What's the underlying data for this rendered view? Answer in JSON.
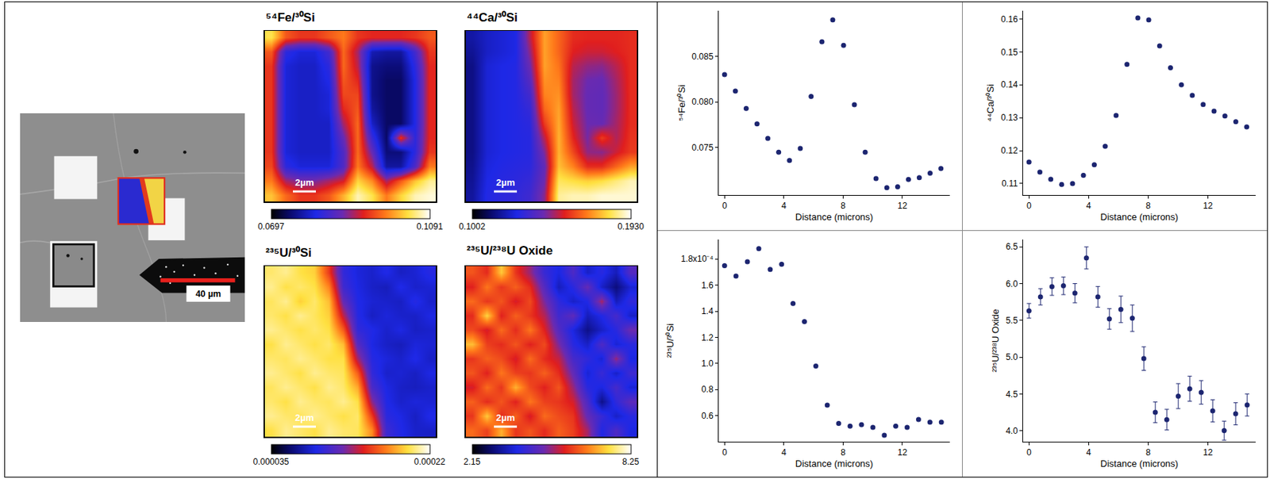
{
  "image": {
    "scale_bar": "40 µm"
  },
  "chart_data": [
    {
      "type": "heatmap",
      "title": "⁵⁴Fe/³⁰Si",
      "tick_labels": false,
      "annotations": [
        {
          "text": "2µm"
        }
      ],
      "zlim": [
        0.0697,
        0.1091
      ],
      "zticks": [
        0.0697,
        0.1091
      ],
      "z": [
        [
          0.104,
          0.096,
          0.094,
          0.094,
          0.096,
          0.098,
          0.094,
          0.093,
          0.093,
          0.093,
          0.094,
          0.096
        ],
        [
          0.096,
          0.082,
          0.08,
          0.08,
          0.084,
          0.097,
          0.09,
          0.078,
          0.077,
          0.077,
          0.084,
          0.094
        ],
        [
          0.094,
          0.08,
          0.079,
          0.079,
          0.082,
          0.097,
          0.091,
          0.076,
          0.075,
          0.075,
          0.082,
          0.093
        ],
        [
          0.094,
          0.08,
          0.079,
          0.079,
          0.081,
          0.096,
          0.093,
          0.076,
          0.074,
          0.074,
          0.081,
          0.093
        ],
        [
          0.094,
          0.08,
          0.079,
          0.079,
          0.08,
          0.095,
          0.095,
          0.076,
          0.074,
          0.074,
          0.081,
          0.093
        ],
        [
          0.094,
          0.08,
          0.079,
          0.079,
          0.08,
          0.093,
          0.096,
          0.077,
          0.074,
          0.074,
          0.081,
          0.093
        ],
        [
          0.094,
          0.08,
          0.079,
          0.079,
          0.079,
          0.09,
          0.097,
          0.079,
          0.074,
          0.074,
          0.081,
          0.093
        ],
        [
          0.094,
          0.08,
          0.079,
          0.079,
          0.079,
          0.087,
          0.097,
          0.083,
          0.074,
          0.094,
          0.082,
          0.093
        ],
        [
          0.094,
          0.08,
          0.079,
          0.079,
          0.079,
          0.085,
          0.097,
          0.087,
          0.075,
          0.075,
          0.082,
          0.094
        ],
        [
          0.095,
          0.082,
          0.08,
          0.08,
          0.08,
          0.085,
          0.098,
          0.091,
          0.077,
          0.077,
          0.085,
          0.098
        ],
        [
          0.098,
          0.09,
          0.088,
          0.088,
          0.09,
          0.092,
          0.103,
          0.099,
          0.09,
          0.096,
          0.102,
          0.106
        ],
        [
          0.102,
          0.097,
          0.094,
          0.094,
          0.096,
          0.101,
          0.107,
          0.104,
          0.098,
          0.103,
          0.107,
          0.108
        ]
      ]
    },
    {
      "type": "heatmap",
      "title": "⁴⁴Ca/³⁰Si",
      "tick_labels": false,
      "annotations": [
        {
          "text": "2µm"
        }
      ],
      "zlim": [
        0.1002,
        0.193
      ],
      "zticks": [
        0.1002,
        {
          "value": 0.193,
          "label": "0.1930"
        }
      ],
      "z": [
        [
          0.118,
          0.122,
          0.124,
          0.126,
          0.15,
          0.172,
          0.164,
          0.156,
          0.155,
          0.155,
          0.155,
          0.156
        ],
        [
          0.116,
          0.122,
          0.124,
          0.126,
          0.146,
          0.172,
          0.164,
          0.154,
          0.152,
          0.152,
          0.154,
          0.156
        ],
        [
          0.114,
          0.124,
          0.126,
          0.127,
          0.142,
          0.172,
          0.166,
          0.15,
          0.146,
          0.145,
          0.15,
          0.156
        ],
        [
          0.114,
          0.124,
          0.126,
          0.127,
          0.138,
          0.17,
          0.168,
          0.148,
          0.142,
          0.141,
          0.148,
          0.156
        ],
        [
          0.114,
          0.124,
          0.126,
          0.127,
          0.134,
          0.168,
          0.17,
          0.148,
          0.141,
          0.14,
          0.147,
          0.156
        ],
        [
          0.114,
          0.124,
          0.126,
          0.127,
          0.131,
          0.164,
          0.172,
          0.15,
          0.141,
          0.14,
          0.147,
          0.156
        ],
        [
          0.114,
          0.124,
          0.126,
          0.127,
          0.129,
          0.158,
          0.173,
          0.152,
          0.142,
          0.141,
          0.148,
          0.156
        ],
        [
          0.114,
          0.124,
          0.126,
          0.127,
          0.128,
          0.15,
          0.174,
          0.155,
          0.143,
          0.158,
          0.149,
          0.157
        ],
        [
          0.114,
          0.124,
          0.126,
          0.127,
          0.128,
          0.144,
          0.174,
          0.16,
          0.146,
          0.145,
          0.152,
          0.158
        ],
        [
          0.115,
          0.125,
          0.127,
          0.128,
          0.129,
          0.14,
          0.176,
          0.168,
          0.156,
          0.156,
          0.164,
          0.172
        ],
        [
          0.116,
          0.126,
          0.128,
          0.129,
          0.131,
          0.142,
          0.182,
          0.18,
          0.178,
          0.18,
          0.184,
          0.188
        ],
        [
          0.117,
          0.127,
          0.129,
          0.13,
          0.133,
          0.145,
          0.186,
          0.188,
          0.188,
          0.19,
          0.19,
          0.19
        ]
      ]
    },
    {
      "type": "heatmap",
      "title": "²³⁵U/³⁰Si",
      "tick_labels": false,
      "annotations": [
        {
          "text": "2µm"
        }
      ],
      "zlim": [
        3.5e-05,
        0.00022
      ],
      "zticks": [
        3.5e-05,
        0.00022
      ],
      "z": [
        [
          0.0002,
          0.000205,
          0.000195,
          0.00019,
          0.00015,
          9.5e-05,
          8.4e-05,
          8e-05,
          8.8e-05,
          7.8e-05,
          8.2e-05,
          9e-05
        ],
        [
          0.000205,
          0.000195,
          0.0002,
          0.000195,
          0.00017,
          0.0001,
          8.6e-05,
          7.9e-05,
          7.6e-05,
          8.8e-05,
          8e-05,
          8.2e-05
        ],
        [
          0.000198,
          0.000205,
          0.00019,
          0.0002,
          0.000185,
          0.000115,
          8.8e-05,
          8.2e-05,
          8e-05,
          7.8e-05,
          9e-05,
          8e-05
        ],
        [
          0.0002,
          0.000195,
          0.000205,
          0.000198,
          0.00019,
          0.000135,
          9e-05,
          7.8e-05,
          8.4e-05,
          8e-05,
          7.9e-05,
          8.6e-05
        ],
        [
          0.000205,
          0.0002,
          0.000195,
          0.0002,
          0.000195,
          0.00016,
          9.5e-05,
          8.8e-05,
          8e-05,
          8.6e-05,
          7.8e-05,
          8e-05
        ],
        [
          0.000195,
          0.000205,
          0.0002,
          0.000195,
          0.0002,
          0.000185,
          0.00011,
          8.6e-05,
          7.9e-05,
          7.6e-05,
          8.4e-05,
          8.2e-05
        ],
        [
          0.0002,
          0.000198,
          0.000205,
          0.0002,
          0.000195,
          0.000195,
          0.00013,
          9e-05,
          8.4e-05,
          8e-05,
          8.8e-05,
          7.9e-05
        ],
        [
          0.000205,
          0.0002,
          0.000195,
          0.000205,
          0.0002,
          0.000198,
          0.00016,
          9.5e-05,
          8e-05,
          8.2e-05,
          7.8e-05,
          8.6e-05
        ],
        [
          0.000198,
          0.000205,
          0.0002,
          0.000195,
          0.000205,
          0.0002,
          0.00018,
          0.000105,
          8.6e-05,
          7.9e-05,
          7.7e-05,
          8e-05
        ],
        [
          0.0002,
          0.000195,
          0.000205,
          0.0002,
          0.000198,
          0.000205,
          0.000195,
          0.000125,
          8.8e-05,
          8e-05,
          8.4e-05,
          8.2e-05
        ],
        [
          0.000205,
          0.0002,
          0.000198,
          0.000205,
          0.0002,
          0.000195,
          0.0002,
          0.00015,
          9.2e-05,
          8.6e-05,
          7.8e-05,
          8.8e-05
        ],
        [
          0.000195,
          0.000205,
          0.0002,
          0.000195,
          0.000205,
          0.0002,
          0.000198,
          0.000172,
          0.0001,
          8.8e-05,
          8e-05,
          7.9e-05
        ]
      ]
    },
    {
      "type": "heatmap",
      "title": "²³⁵U/²³⁸U Oxide",
      "tick_labels": false,
      "annotations": [
        {
          "text": "2µm"
        }
      ],
      "zlim": [
        2.15,
        8.25
      ],
      "zticks": [
        2.15,
        8.25
      ],
      "z": [
        [
          6.2,
          5.8,
          7.2,
          5.9,
          5.2,
          4.2,
          3.8,
          4.5,
          3.6,
          4.0,
          3.5,
          4.6
        ],
        [
          5.7,
          6.5,
          5.9,
          6.3,
          5.8,
          4.6,
          3.5,
          4.0,
          4.8,
          3.6,
          3.0,
          3.7
        ],
        [
          6.4,
          5.9,
          6.2,
          5.6,
          6.1,
          5.0,
          4.1,
          3.6,
          3.9,
          5.3,
          3.5,
          4.1
        ],
        [
          5.8,
          7.3,
          5.7,
          6.3,
          5.9,
          5.4,
          4.3,
          4.7,
          3.5,
          3.9,
          4.4,
          3.6
        ],
        [
          6.1,
          5.6,
          6.4,
          5.8,
          6.5,
          5.7,
          4.6,
          3.8,
          3.1,
          3.6,
          4.0,
          4.9
        ],
        [
          7.1,
          6.0,
          5.8,
          6.2,
          5.7,
          6.1,
          5.0,
          4.0,
          3.6,
          4.5,
          3.7,
          4.0
        ],
        [
          5.9,
          6.3,
          6.1,
          5.6,
          6.4,
          5.8,
          5.5,
          4.4,
          4.1,
          3.7,
          5.2,
          3.8
        ],
        [
          6.2,
          5.7,
          6.5,
          6.0,
          5.9,
          6.3,
          5.8,
          4.8,
          3.7,
          4.2,
          3.6,
          4.3
        ],
        [
          5.6,
          6.4,
          5.9,
          7.0,
          6.1,
          5.7,
          6.2,
          5.2,
          4.0,
          3.8,
          4.4,
          3.7
        ],
        [
          6.3,
          5.8,
          6.2,
          5.7,
          6.5,
          6.0,
          5.9,
          5.6,
          4.5,
          3.1,
          4.1,
          4.7
        ],
        [
          5.9,
          7.2,
          5.8,
          6.3,
          5.6,
          6.4,
          6.1,
          5.9,
          4.8,
          4.2,
          3.6,
          4.0
        ],
        [
          6.4,
          6.0,
          7.0,
          5.9,
          6.2,
          5.8,
          6.3,
          6.0,
          5.3,
          3.9,
          4.5,
          3.8
        ]
      ]
    },
    {
      "type": "scatter",
      "x_label": "Distance (microns)",
      "y_label": "⁵⁴Fe/³⁰Si",
      "color": "#1c2570",
      "marker": "circle",
      "grid": false,
      "xlim": [
        -0.4,
        15.2
      ],
      "xticks": [
        0,
        4,
        8,
        12
      ],
      "ylim": [
        0.0698,
        0.09
      ],
      "yticks": [
        0.075,
        {
          "value": 0.08,
          "label": "0.080"
        },
        0.085
      ],
      "x": [
        0,
        0.73,
        1.46,
        2.19,
        2.92,
        3.65,
        4.38,
        5.11,
        5.84,
        6.57,
        7.3,
        8.03,
        8.76,
        9.49,
        10.22,
        10.95,
        11.68,
        12.41,
        13.14,
        13.87,
        14.6
      ],
      "values": [
        0.083,
        0.0812,
        0.0793,
        0.0776,
        0.076,
        0.0745,
        0.0736,
        0.0749,
        0.0806,
        0.0866,
        0.089,
        0.0862,
        0.0797,
        0.0745,
        0.0716,
        0.0706,
        0.0707,
        0.0715,
        0.0717,
        0.0722,
        0.0727
      ]
    },
    {
      "type": "scatter",
      "x_label": "Distance (microns)",
      "y_label": "⁴⁴Ca/³⁰Si",
      "color": "#1c2570",
      "marker": "circle",
      "grid": false,
      "xlim": [
        -0.4,
        15.2
      ],
      "xticks": [
        0,
        4,
        8,
        12
      ],
      "ylim": [
        0.1065,
        0.1625
      ],
      "yticks": [
        0.11,
        0.12,
        0.13,
        0.14,
        0.15,
        0.16
      ],
      "x": [
        0,
        0.73,
        1.46,
        2.19,
        2.92,
        3.65,
        4.38,
        5.11,
        5.84,
        6.57,
        7.3,
        8.03,
        8.76,
        9.49,
        10.22,
        10.95,
        11.68,
        12.41,
        13.14,
        13.87,
        14.6
      ],
      "values": [
        0.1165,
        0.1135,
        0.1113,
        0.1097,
        0.11,
        0.1125,
        0.1157,
        0.1213,
        0.1307,
        0.1462,
        0.1603,
        0.1597,
        0.1518,
        0.1452,
        0.14,
        0.1368,
        0.134,
        0.132,
        0.1305,
        0.1288,
        0.1272
      ]
    },
    {
      "type": "scatter",
      "x_label": "Distance (microns)",
      "y_label": "²³⁵U/³⁰Si",
      "color": "#1c2570",
      "marker": "circle",
      "grid": false,
      "xlim": [
        -0.4,
        15.2
      ],
      "xticks": [
        0,
        4,
        8,
        12
      ],
      "ylim": [
        4e-05,
        0.000195
      ],
      "yticks": [
        {
          "value": 6e-05,
          "label": "0.6"
        },
        {
          "value": 8e-05,
          "label": "0.8"
        },
        {
          "value": 0.0001,
          "label": "1.0"
        },
        {
          "value": 0.00012,
          "label": "1.2"
        },
        {
          "value": 0.00014,
          "label": "1.4"
        },
        {
          "value": 0.00016,
          "label": "1.6"
        },
        {
          "value": 0.00018,
          "label": "1.8x10⁻⁴"
        }
      ],
      "x": [
        0,
        0.77,
        1.54,
        2.31,
        3.08,
        3.85,
        4.62,
        5.39,
        6.16,
        6.93,
        7.7,
        8.47,
        9.24,
        10.01,
        10.78,
        11.55,
        12.32,
        13.09,
        13.86,
        14.63
      ],
      "values": [
        0.000175,
        0.000167,
        0.000178,
        0.000188,
        0.000172,
        0.000176,
        0.000146,
        0.000132,
        9.8e-05,
        6.8e-05,
        5.4e-05,
        5.2e-05,
        5.3e-05,
        5.1e-05,
        4.5e-05,
        5.2e-05,
        5.1e-05,
        5.7e-05,
        5.5e-05,
        5.5e-05
      ]
    },
    {
      "type": "scatter",
      "x_label": "Distance (microns)",
      "y_label": "²³⁵U/²³⁸U Oxide",
      "color": "#1c2570",
      "marker": "circle",
      "grid": false,
      "xlim": [
        -0.4,
        15.2
      ],
      "xticks": [
        0,
        4,
        8,
        12
      ],
      "ylim": [
        3.85,
        6.6
      ],
      "yticks": [
        {
          "value": 4,
          "label": "4.0"
        },
        4.5,
        {
          "value": 5,
          "label": "5.0"
        },
        5.5,
        {
          "value": 6,
          "label": "6.0"
        },
        6.5
      ],
      "x": [
        0,
        0.77,
        1.54,
        2.31,
        3.08,
        3.85,
        4.62,
        5.39,
        6.16,
        6.93,
        7.7,
        8.47,
        9.24,
        10.01,
        10.78,
        11.55,
        12.32,
        13.09,
        13.86,
        14.63
      ],
      "values": [
        5.63,
        5.82,
        5.96,
        5.97,
        5.87,
        6.35,
        5.82,
        5.52,
        5.65,
        5.53,
        4.98,
        4.25,
        4.15,
        4.47,
        4.57,
        4.52,
        4.27,
        4.0,
        4.23,
        4.35
      ],
      "errors": [
        0.1,
        0.11,
        0.12,
        0.12,
        0.13,
        0.15,
        0.14,
        0.14,
        0.18,
        0.18,
        0.16,
        0.14,
        0.14,
        0.17,
        0.17,
        0.16,
        0.15,
        0.13,
        0.15,
        0.15
      ]
    }
  ]
}
